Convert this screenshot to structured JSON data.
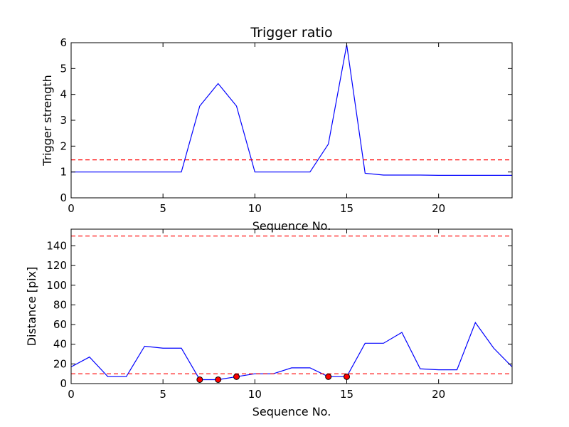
{
  "chart_data": [
    {
      "type": "line",
      "title": "Trigger ratio",
      "xlabel": "Sequence No.",
      "ylabel": "Trigger strength",
      "xlim": [
        0,
        24
      ],
      "ylim": [
        0,
        6
      ],
      "xticks": [
        0,
        5,
        10,
        15,
        20
      ],
      "yticks": [
        0,
        1,
        2,
        3,
        4,
        5,
        6
      ],
      "grid": false,
      "series": [
        {
          "color": "#0000ff",
          "x": [
            0,
            1,
            2,
            3,
            4,
            5,
            6,
            7,
            8,
            9,
            10,
            11,
            12,
            13,
            14,
            15,
            16,
            17,
            18,
            19,
            20,
            21,
            22,
            23,
            24
          ],
          "values": [
            1.0,
            1.0,
            1.0,
            1.0,
            1.0,
            1.0,
            1.0,
            3.55,
            4.42,
            3.55,
            1.0,
            1.0,
            1.0,
            1.0,
            2.08,
            5.92,
            0.95,
            0.88,
            0.88,
            0.88,
            0.87,
            0.87,
            0.87,
            0.87,
            0.87
          ]
        }
      ],
      "hlines": [
        {
          "y": 1.47,
          "color": "#ff0000",
          "style": "dashed"
        }
      ]
    },
    {
      "type": "line",
      "title": "",
      "xlabel": "Sequence No.",
      "ylabel": "Distance [pix]",
      "xlim": [
        0,
        24
      ],
      "ylim": [
        0,
        157
      ],
      "xticks": [
        0,
        5,
        10,
        15,
        20
      ],
      "yticks": [
        0,
        20,
        40,
        60,
        80,
        100,
        120,
        140
      ],
      "grid": false,
      "series": [
        {
          "color": "#0000ff",
          "x": [
            0,
            1,
            2,
            3,
            4,
            5,
            6,
            7,
            8,
            9,
            10,
            11,
            12,
            13,
            14,
            15,
            16,
            17,
            18,
            19,
            20,
            21,
            22,
            23,
            24
          ],
          "values": [
            17,
            27,
            7,
            7,
            38,
            36,
            36,
            4,
            4,
            7,
            10,
            10,
            16,
            16,
            7,
            7,
            41,
            41,
            52,
            15,
            14,
            14,
            62,
            36,
            17
          ]
        }
      ],
      "markers": {
        "color": "#ff0000",
        "x": [
          7,
          8,
          9,
          14,
          15
        ],
        "values": [
          4,
          4,
          7,
          7,
          7
        ]
      },
      "hlines": [
        {
          "y": 10,
          "color": "#ff0000",
          "style": "dashed"
        },
        {
          "y": 150,
          "color": "#ff0000",
          "style": "dashed"
        }
      ]
    }
  ]
}
